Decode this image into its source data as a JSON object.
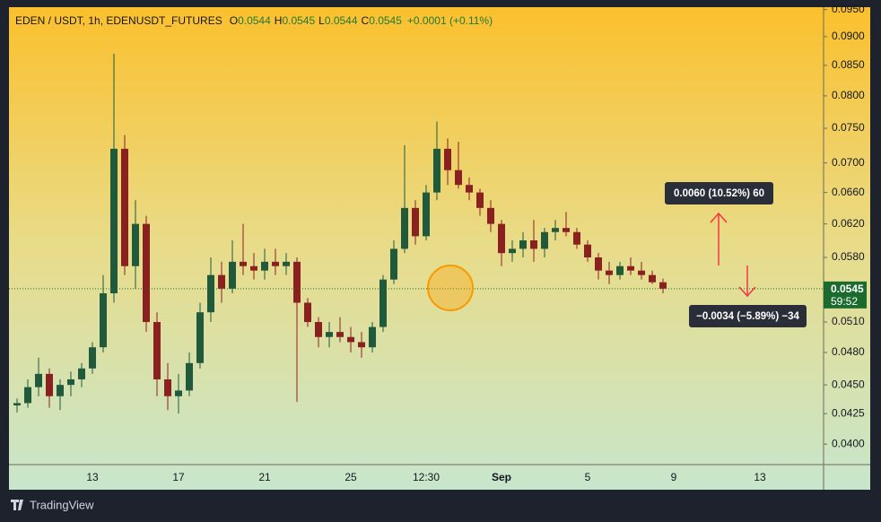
{
  "chart_data": {
    "type": "candlestick",
    "title": "EDEN / USDT, 1h, EDENUSDT_FUTURES",
    "header_ohlc": [
      {
        "key": "O",
        "value": "0.0544"
      },
      {
        "key": "H",
        "value": "0.0545"
      },
      {
        "key": "L",
        "value": "0.0544"
      },
      {
        "key": "C",
        "value": "0.0545"
      }
    ],
    "header_change": "+0.0001 (+0.11%)",
    "categories": [
      null,
      null,
      null,
      null,
      null,
      null,
      null,
      "13",
      null,
      null,
      null,
      null,
      null,
      null,
      null,
      "17",
      null,
      null,
      null,
      null,
      null,
      null,
      null,
      "21",
      null,
      null,
      null,
      null,
      null,
      null,
      null,
      "25",
      null,
      null,
      null,
      null,
      null,
      null,
      "12:30",
      null,
      null,
      null,
      null,
      null,
      null,
      "Sep",
      null,
      null,
      null,
      null,
      null,
      null,
      null,
      "5",
      null,
      null,
      null,
      null,
      null,
      null,
      null,
      "9",
      null,
      null,
      null,
      null,
      null,
      null,
      null,
      "13",
      null,
      null,
      null,
      null,
      null
    ],
    "open": [
      0.0432,
      0.0434,
      0.0448,
      0.046,
      0.044,
      0.045,
      0.0455,
      0.0465,
      0.0485,
      0.054,
      0.072,
      0.057,
      0.062,
      0.051,
      0.0455,
      0.044,
      0.0445,
      0.047,
      0.052,
      0.056,
      0.0545,
      0.0575,
      0.057,
      0.0565,
      0.0575,
      0.057,
      0.0575,
      0.053,
      0.051,
      0.0495,
      0.05,
      0.0495,
      0.049,
      0.0485,
      0.0505,
      0.0555,
      0.059,
      0.064,
      0.0605,
      0.066,
      0.072,
      0.069,
      0.067,
      0.066,
      0.064,
      0.062,
      0.0585,
      0.059,
      0.06,
      0.059,
      0.061,
      0.0615,
      0.061,
      0.0595,
      0.058,
      0.0565,
      0.056,
      0.057,
      0.0565,
      0.056,
      0.0552,
      null,
      null,
      null,
      null,
      null,
      null,
      null,
      null,
      null,
      null,
      null,
      null,
      null,
      null
    ],
    "high": [
      0.0438,
      0.0455,
      0.0475,
      0.0465,
      0.0455,
      0.0462,
      0.047,
      0.049,
      0.056,
      0.087,
      0.074,
      0.065,
      0.063,
      0.052,
      0.047,
      0.046,
      0.048,
      0.053,
      0.058,
      0.0575,
      0.06,
      0.062,
      0.0585,
      0.059,
      0.059,
      0.0585,
      0.058,
      0.0535,
      0.0515,
      0.051,
      0.0515,
      0.0505,
      0.05,
      0.051,
      0.056,
      0.06,
      0.0725,
      0.065,
      0.067,
      0.076,
      0.0735,
      0.073,
      0.068,
      0.0665,
      0.065,
      0.0625,
      0.06,
      0.061,
      0.0625,
      0.0615,
      0.0625,
      0.0635,
      0.0615,
      0.06,
      0.0585,
      0.0575,
      0.0575,
      0.058,
      0.0575,
      0.0565,
      0.0556,
      null,
      null,
      null,
      null,
      null,
      null,
      null,
      null,
      null,
      null,
      null,
      null,
      null,
      null
    ],
    "low": [
      0.0426,
      0.043,
      0.044,
      0.043,
      0.0428,
      0.044,
      0.0448,
      0.046,
      0.048,
      0.053,
      0.056,
      0.0545,
      0.05,
      0.044,
      0.0428,
      0.0425,
      0.044,
      0.0465,
      0.051,
      0.053,
      0.054,
      0.056,
      0.0555,
      0.0555,
      0.056,
      0.056,
      0.0435,
      0.0505,
      0.0485,
      0.0485,
      0.049,
      0.048,
      0.0475,
      0.048,
      0.05,
      0.055,
      0.0585,
      0.0595,
      0.06,
      0.065,
      0.067,
      0.0665,
      0.065,
      0.063,
      0.061,
      0.057,
      0.0575,
      0.058,
      0.0575,
      0.058,
      0.06,
      0.0605,
      0.059,
      0.0575,
      0.0555,
      0.055,
      0.0555,
      0.056,
      0.0555,
      0.055,
      0.054,
      null,
      null,
      null,
      null,
      null,
      null,
      null,
      null,
      null,
      null,
      null,
      null,
      null,
      null
    ],
    "close": [
      0.0434,
      0.0448,
      0.046,
      0.044,
      0.045,
      0.0455,
      0.0465,
      0.0485,
      0.054,
      0.072,
      0.057,
      0.062,
      0.051,
      0.0455,
      0.044,
      0.0445,
      0.047,
      0.052,
      0.056,
      0.0545,
      0.0575,
      0.057,
      0.0565,
      0.0575,
      0.057,
      0.0575,
      0.053,
      0.051,
      0.0495,
      0.05,
      0.0495,
      0.049,
      0.0485,
      0.0505,
      0.0555,
      0.059,
      0.064,
      0.0605,
      0.066,
      0.072,
      0.069,
      0.067,
      0.066,
      0.064,
      0.062,
      0.0585,
      0.059,
      0.06,
      0.059,
      0.061,
      0.0615,
      0.061,
      0.0595,
      0.058,
      0.0565,
      0.056,
      0.057,
      0.0565,
      0.056,
      0.0552,
      0.0545,
      null,
      null,
      null,
      null,
      null,
      null,
      null,
      null,
      null,
      null,
      null,
      null,
      null,
      null
    ],
    "up_color": "#1f5a3c",
    "down_color": "#8a2020",
    "log_scale": true,
    "ylim": [
      0.0384,
      0.0951
    ],
    "yticks": [
      {
        "value": 0.095,
        "label": "0.0950"
      },
      {
        "value": 0.09,
        "label": "0.0900"
      },
      {
        "value": 0.085,
        "label": "0.0850"
      },
      {
        "value": 0.08,
        "label": "0.0800"
      },
      {
        "value": 0.075,
        "label": "0.0750"
      },
      {
        "value": 0.07,
        "label": "0.0700"
      },
      {
        "value": 0.066,
        "label": "0.0660"
      },
      {
        "value": 0.062,
        "label": "0.0620"
      },
      {
        "value": 0.058,
        "label": "0.0580"
      },
      {
        "value": 0.051,
        "label": "0.0510"
      },
      {
        "value": 0.048,
        "label": "0.0480"
      },
      {
        "value": 0.045,
        "label": "0.0450"
      },
      {
        "value": 0.0425,
        "label": "0.0425"
      },
      {
        "value": 0.04,
        "label": "0.0400"
      }
    ],
    "last_price": 0.0545,
    "last_price_color": "#1b6b2f",
    "countdown": "59:52",
    "annotations": [
      "0.0060 (10.52%) 60",
      "−0.0034 (−5.89%) −34"
    ],
    "brand": "TradingView"
  }
}
